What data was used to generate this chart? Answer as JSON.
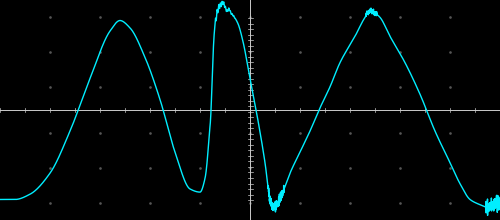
{
  "bg_color": "#000000",
  "line_color": "#00EEFF",
  "grid_dot_color": "#555555",
  "axis_color": "#CCCCCC",
  "figsize": [
    5.0,
    2.2
  ],
  "dpi": 100,
  "line_width": 1.0
}
